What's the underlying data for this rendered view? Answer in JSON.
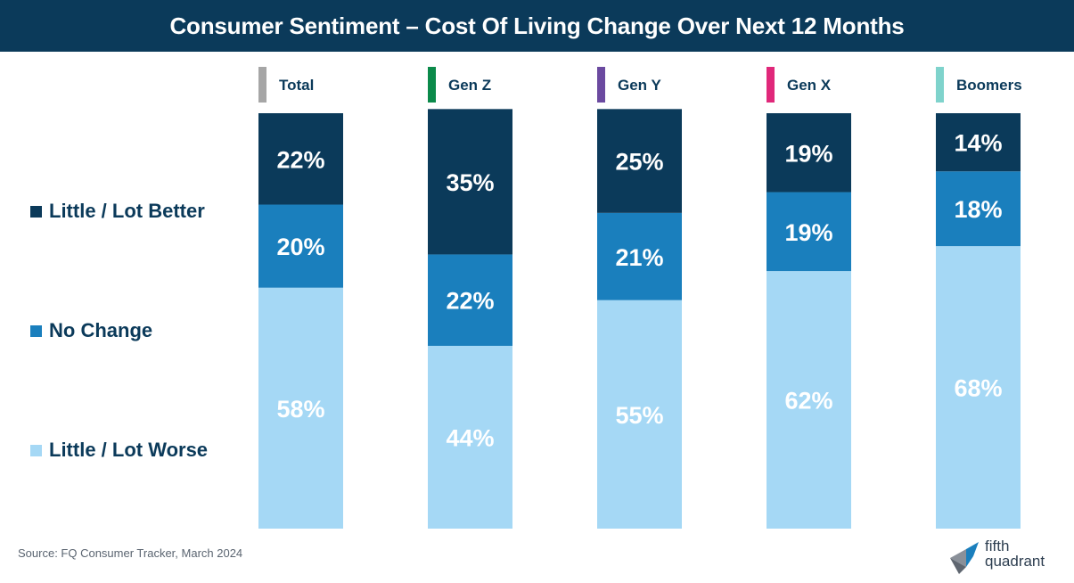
{
  "title": "Consumer Sentiment – Cost Of Living Change Over Next 12 Months",
  "source": "Source: FQ Consumer Tracker, March 2024",
  "logo": {
    "line1": "fifth",
    "line2": "quadrant"
  },
  "legend": [
    {
      "label": "Little / Lot Better",
      "color": "#0b3a5a"
    },
    {
      "label": "No Change",
      "color": "#1a7fbd"
    },
    {
      "label": "Little / Lot Worse",
      "color": "#a5d8f5"
    }
  ],
  "chart_data": {
    "type": "bar",
    "stacked": true,
    "categories": [
      "Total",
      "Gen Z",
      "Gen Y",
      "Gen X",
      "Boomers"
    ],
    "category_colors": [
      "#a6a6a6",
      "#0b8a4a",
      "#6b4aa0",
      "#e0287a",
      "#7fd3cc"
    ],
    "series": [
      {
        "name": "Little / Lot Worse",
        "color": "#a5d8f5",
        "values": [
          58,
          44,
          55,
          62,
          68
        ],
        "labels": [
          "58%",
          "44%",
          "55%",
          "62%",
          "68%"
        ]
      },
      {
        "name": "No Change",
        "color": "#1a7fbd",
        "values": [
          20,
          22,
          21,
          19,
          18
        ],
        "labels": [
          "20%",
          "22%",
          "21%",
          "19%",
          "18%"
        ]
      },
      {
        "name": "Little / Lot Better",
        "color": "#0b3a5a",
        "values": [
          22,
          35,
          25,
          19,
          14
        ],
        "labels": [
          "22%",
          "35%",
          "25%",
          "19%",
          "14%"
        ]
      }
    ],
    "ylim": [
      0,
      100
    ],
    "legend_position": "left",
    "grid": false
  }
}
